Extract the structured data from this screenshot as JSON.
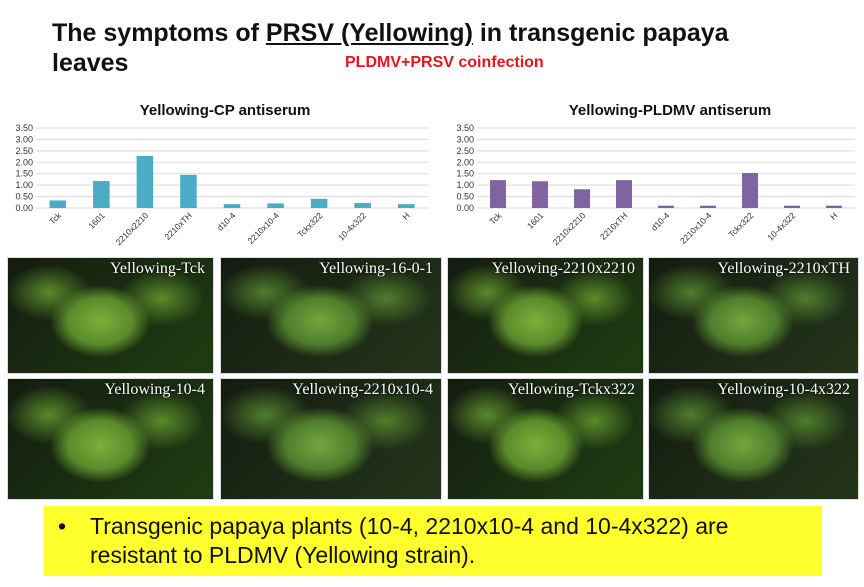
{
  "title": {
    "prefix": "The symptoms of ",
    "underlined": "PRSV (Yellowing)",
    "suffix": " in transgenic papaya leaves",
    "subtitle": "PLDMV+PRSV coinfection"
  },
  "colors": {
    "cp_bar": "#4bacc6",
    "pldmv_bar": "#8064a2",
    "subtitle": "#e8141d",
    "note_bg": "#ffff2e"
  },
  "chart_data": [
    {
      "type": "bar",
      "title": "Yellowing-CP antiserum",
      "categories": [
        "Tck",
        "1601",
        "2210x2210",
        "2210xTH",
        "d10-4",
        "2210x10-4",
        "Tckx322",
        "10-4x322",
        "H"
      ],
      "values": [
        0.33,
        1.18,
        2.28,
        1.45,
        0.17,
        0.2,
        0.4,
        0.22,
        0.17
      ],
      "y_ticks": [
        "0.00",
        "0.50",
        "1.00",
        "1.50",
        "2.00",
        "2.50",
        "3.00",
        "3.50"
      ],
      "ylim": [
        0,
        3.5
      ],
      "grid": true
    },
    {
      "type": "bar",
      "title": "Yellowing-PLDMV antiserum",
      "categories": [
        "Tck",
        "1601",
        "2210x2210",
        "2210xTH",
        "d10-4",
        "2210x10-4",
        "Tckx322",
        "10-4x322",
        "H"
      ],
      "values": [
        1.22,
        1.17,
        0.82,
        1.22,
        0.1,
        0.1,
        1.53,
        0.1,
        0.1
      ],
      "y_ticks": [
        "0.00",
        "0.50",
        "1.00",
        "1.50",
        "2.00",
        "2.50",
        "3.00",
        "3.50"
      ],
      "ylim": [
        0,
        3.5
      ],
      "grid": true
    }
  ],
  "photos": [
    {
      "label": "Yellowing-Tck"
    },
    {
      "label": "Yellowing-16-0-1"
    },
    {
      "label": "Yellowing-2210x2210"
    },
    {
      "label": "Yellowing-2210xTH"
    },
    {
      "label": "Yellowing-10-4"
    },
    {
      "label": "Yellowing-2210x10-4"
    },
    {
      "label": "Yellowing-Tckx322"
    },
    {
      "label": "Yellowing-10-4x322"
    }
  ],
  "note": {
    "bullet": "•",
    "text": "Transgenic papaya plants (10-4, 2210x10-4 and 10-4x322) are  resistant to PLDMV (Yellowing strain)."
  }
}
